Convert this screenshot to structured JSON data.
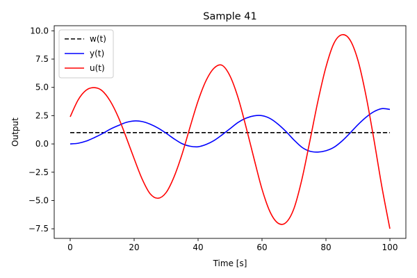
{
  "chart_data": {
    "type": "line",
    "title": "Sample 41",
    "xlabel": "Time [s]",
    "ylabel": "Output",
    "xlim": [
      -5,
      105
    ],
    "ylim": [
      -8.35,
      10.45
    ],
    "x_ticks": [
      0,
      20,
      40,
      60,
      80,
      100
    ],
    "y_ticks": [
      -7.5,
      -5.0,
      -2.5,
      0.0,
      2.5,
      5.0,
      7.5,
      10.0
    ],
    "x_tick_labels": [
      "0",
      "20",
      "40",
      "60",
      "80",
      "100"
    ],
    "y_tick_labels": [
      "−7.5",
      "−5.0",
      "−2.5",
      "0.0",
      "2.5",
      "5.0",
      "7.5",
      "10.0"
    ],
    "grid": false,
    "legend_position": "upper-left",
    "x": [
      0,
      2.5,
      5,
      7.5,
      10,
      12.5,
      15,
      17.5,
      20,
      22.5,
      25,
      27.5,
      30,
      32.5,
      35,
      37.5,
      40,
      42.5,
      45,
      47.5,
      50,
      52.5,
      55,
      57.5,
      60,
      62.5,
      65,
      67.5,
      70,
      72.5,
      75,
      77.5,
      80,
      82.5,
      85,
      87.5,
      90,
      92.5,
      95,
      97.5,
      100
    ],
    "series": [
      {
        "name": "w(t)",
        "color": "#000000",
        "dash": "dashed",
        "values": [
          1,
          1,
          1,
          1,
          1,
          1,
          1,
          1,
          1,
          1,
          1,
          1,
          1,
          1,
          1,
          1,
          1,
          1,
          1,
          1,
          1,
          1,
          1,
          1,
          1,
          1,
          1,
          1,
          1,
          1,
          1,
          1,
          1,
          1,
          1,
          1,
          1,
          1,
          1,
          1,
          1
        ]
      },
      {
        "name": "y(t)",
        "color": "#0000ff",
        "dash": "solid",
        "values": [
          0.0,
          0.06,
          0.25,
          0.55,
          0.9,
          1.3,
          1.62,
          1.9,
          2.03,
          1.98,
          1.75,
          1.4,
          0.95,
          0.45,
          0.02,
          -0.2,
          -0.25,
          -0.05,
          0.3,
          0.8,
          1.35,
          1.9,
          2.28,
          2.48,
          2.5,
          2.25,
          1.75,
          1.1,
          0.35,
          -0.3,
          -0.65,
          -0.72,
          -0.6,
          -0.3,
          0.25,
          0.95,
          1.7,
          2.35,
          2.85,
          3.12,
          3.05
        ]
      },
      {
        "name": "u(t)",
        "color": "#ff0000",
        "dash": "solid",
        "values": [
          2.4,
          3.9,
          4.75,
          4.98,
          4.7,
          3.8,
          2.4,
          0.6,
          -1.3,
          -3.1,
          -4.4,
          -4.8,
          -4.3,
          -2.9,
          -0.9,
          1.5,
          3.8,
          5.6,
          6.7,
          6.95,
          6.0,
          4.1,
          1.5,
          -1.3,
          -4.0,
          -6.0,
          -7.0,
          -6.95,
          -5.7,
          -3.1,
          0.3,
          3.8,
          6.8,
          8.9,
          9.65,
          9.2,
          7.4,
          4.3,
          0.4,
          -3.8,
          -7.5
        ]
      }
    ]
  }
}
